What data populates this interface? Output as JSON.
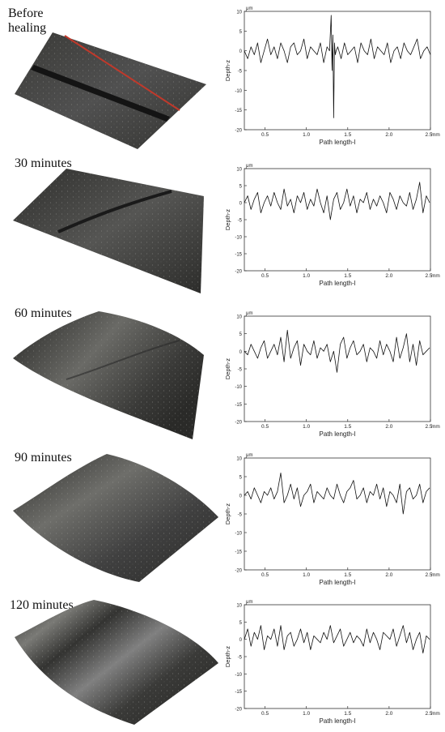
{
  "figure": {
    "panels": [
      {
        "label": "Before\nhealing",
        "surface": {
          "crack_visible": true,
          "crack_strength": "deep",
          "scan_line_marker": true,
          "scan_line_color": "#c0392b"
        },
        "tick_labels": {
          "unit_y": "μm",
          "unit_x": "mm",
          "xlabel": "Path length-l",
          "ylabel": "Depth-z"
        }
      },
      {
        "label": "30 minutes",
        "surface": {
          "crack_visible": true,
          "crack_strength": "shallow",
          "scan_line_marker": false
        },
        "tick_labels": {
          "unit_y": "μm",
          "unit_x": "mm",
          "xlabel": "Path length-l",
          "ylabel": "Depth-z"
        }
      },
      {
        "label": "60 minutes",
        "surface": {
          "crack_visible": true,
          "crack_strength": "faint",
          "scan_line_marker": false
        },
        "tick_labels": {
          "unit_y": "μm",
          "unit_x": "mm",
          "xlabel": "Path length-l",
          "ylabel": "Depth-z"
        }
      },
      {
        "label": "90 minutes",
        "surface": {
          "crack_visible": false,
          "crack_strength": "none",
          "scan_line_marker": false
        },
        "tick_labels": {
          "unit_y": "μm",
          "unit_x": "mm",
          "xlabel": "Path length-l",
          "ylabel": "Depth-z"
        }
      },
      {
        "label": "120 minutes",
        "surface": {
          "crack_visible": false,
          "crack_strength": "none",
          "scan_line_marker": false
        },
        "tick_labels": {
          "unit_y": "μm",
          "unit_x": "mm",
          "xlabel": "Path length-l",
          "ylabel": "Depth-z"
        }
      }
    ]
  },
  "chart_data": [
    {
      "type": "line",
      "title": "",
      "xlabel": "Path length-l",
      "ylabel": "Depth-z",
      "x_unit": "mm",
      "y_unit": "μm",
      "xlim": [
        0.25,
        2.5
      ],
      "ylim": [
        -20,
        10
      ],
      "xticks": [
        0.5,
        1.0,
        1.5,
        2.0,
        2.5
      ],
      "xtick_labels": [
        "0.5",
        "1.0",
        "1.5",
        "2.0",
        "2.5"
      ],
      "yticks": [
        10,
        5,
        0,
        -5,
        -10,
        -15,
        -20
      ],
      "ytick_labels": [
        "10",
        "5",
        "0",
        "-5",
        "-10",
        "-15",
        "-20"
      ],
      "grid": false,
      "series": [
        {
          "x": [
            0.25,
            0.29,
            0.33,
            0.37,
            0.41,
            0.45,
            0.49,
            0.53,
            0.57,
            0.61,
            0.65,
            0.69,
            0.73,
            0.77,
            0.81,
            0.85,
            0.89,
            0.93,
            0.97,
            1.01,
            1.05,
            1.09,
            1.13,
            1.17,
            1.21,
            1.25,
            1.28,
            1.3,
            1.31,
            1.32,
            1.33,
            1.34,
            1.35,
            1.36,
            1.38,
            1.42,
            1.46,
            1.5,
            1.54,
            1.58,
            1.62,
            1.66,
            1.7,
            1.74,
            1.78,
            1.82,
            1.86,
            1.9,
            1.94,
            1.98,
            2.02,
            2.06,
            2.1,
            2.14,
            2.18,
            2.22,
            2.26,
            2.3,
            2.34,
            2.38,
            2.42,
            2.46,
            2.5
          ],
          "y": [
            0,
            -2,
            1,
            -1,
            2,
            -3,
            0,
            3,
            -1,
            1,
            -2,
            2,
            0,
            -3,
            1,
            2,
            -1,
            0,
            3,
            -2,
            1,
            0,
            -1,
            2,
            -3,
            1,
            0,
            9,
            -5,
            4,
            -17,
            2,
            -1,
            0,
            1,
            -2,
            2,
            -1,
            0,
            1,
            -3,
            2,
            0,
            -1,
            3,
            -2,
            1,
            0,
            -1,
            2,
            -3,
            0,
            1,
            -2,
            2,
            0,
            -1,
            1,
            3,
            -2,
            0,
            1,
            -1
          ]
        }
      ]
    },
    {
      "type": "line",
      "title": "",
      "xlabel": "Path length-l",
      "ylabel": "Depth-z",
      "x_unit": "mm",
      "y_unit": "μm",
      "xlim": [
        0.25,
        2.5
      ],
      "ylim": [
        -20,
        10
      ],
      "xticks": [
        0.5,
        1.0,
        1.5,
        2.0,
        2.5
      ],
      "xtick_labels": [
        "0.5",
        "1.0",
        "1.5",
        "2.0",
        "2.5"
      ],
      "yticks": [
        10,
        5,
        0,
        -5,
        -10,
        -15,
        -20
      ],
      "ytick_labels": [
        "10",
        "5",
        "0",
        "-5",
        "-10",
        "-15",
        "-20"
      ],
      "grid": false,
      "series": [
        {
          "x": [
            0.25,
            0.29,
            0.33,
            0.37,
            0.41,
            0.45,
            0.49,
            0.53,
            0.57,
            0.61,
            0.65,
            0.69,
            0.73,
            0.77,
            0.81,
            0.85,
            0.89,
            0.93,
            0.97,
            1.01,
            1.05,
            1.09,
            1.13,
            1.17,
            1.21,
            1.25,
            1.29,
            1.33,
            1.37,
            1.41,
            1.45,
            1.49,
            1.53,
            1.57,
            1.61,
            1.65,
            1.69,
            1.73,
            1.77,
            1.81,
            1.85,
            1.89,
            1.93,
            1.97,
            2.01,
            2.05,
            2.09,
            2.13,
            2.17,
            2.21,
            2.25,
            2.29,
            2.33,
            2.37,
            2.41,
            2.45,
            2.49
          ],
          "y": [
            0,
            2,
            -2,
            1,
            3,
            -3,
            0,
            2,
            -1,
            3,
            0,
            -2,
            4,
            -1,
            1,
            -3,
            2,
            0,
            3,
            -2,
            1,
            -1,
            4,
            0,
            -3,
            2,
            -5,
            1,
            3,
            -2,
            0,
            4,
            -1,
            2,
            -3,
            1,
            0,
            3,
            -2,
            1,
            -1,
            2,
            0,
            -3,
            3,
            1,
            -2,
            2,
            0,
            -1,
            3,
            -2,
            1,
            6,
            -3,
            2,
            0
          ]
        }
      ]
    },
    {
      "type": "line",
      "title": "",
      "xlabel": "Path length-l",
      "ylabel": "Depth-z",
      "x_unit": "mm",
      "y_unit": "μm",
      "xlim": [
        0.25,
        2.5
      ],
      "ylim": [
        -20,
        10
      ],
      "xticks": [
        0.5,
        1.0,
        1.5,
        2.0,
        2.5
      ],
      "xtick_labels": [
        "0.5",
        "1.0",
        "1.5",
        "2.0",
        "2.5"
      ],
      "yticks": [
        10,
        5,
        0,
        -5,
        -10,
        -15,
        -20
      ],
      "ytick_labels": [
        "10",
        "5",
        "0",
        "-5",
        "-10",
        "-15",
        "-20"
      ],
      "grid": false,
      "series": [
        {
          "x": [
            0.25,
            0.29,
            0.33,
            0.37,
            0.41,
            0.45,
            0.49,
            0.53,
            0.57,
            0.61,
            0.65,
            0.69,
            0.73,
            0.77,
            0.81,
            0.85,
            0.89,
            0.93,
            0.97,
            1.01,
            1.05,
            1.09,
            1.13,
            1.17,
            1.21,
            1.25,
            1.29,
            1.33,
            1.37,
            1.41,
            1.45,
            1.49,
            1.53,
            1.57,
            1.61,
            1.65,
            1.69,
            1.73,
            1.77,
            1.81,
            1.85,
            1.89,
            1.93,
            1.97,
            2.01,
            2.05,
            2.09,
            2.13,
            2.17,
            2.21,
            2.25,
            2.29,
            2.33,
            2.37,
            2.41,
            2.45,
            2.49
          ],
          "y": [
            0,
            -1,
            2,
            0,
            -2,
            1,
            3,
            -2,
            0,
            2,
            -1,
            4,
            -3,
            6,
            -2,
            1,
            3,
            -4,
            2,
            0,
            -1,
            3,
            -2,
            1,
            0,
            2,
            -3,
            0,
            -6,
            2,
            4,
            -2,
            1,
            3,
            -1,
            0,
            2,
            -3,
            1,
            0,
            -2,
            3,
            -1,
            2,
            0,
            -3,
            4,
            -2,
            1,
            5,
            -3,
            2,
            -4,
            3,
            -1,
            0,
            1
          ]
        }
      ]
    },
    {
      "type": "line",
      "title": "",
      "xlabel": "Path length-l",
      "ylabel": "Depth-z",
      "x_unit": "mm",
      "y_unit": "μm",
      "xlim": [
        0.25,
        2.5
      ],
      "ylim": [
        -20,
        10
      ],
      "xticks": [
        0.5,
        1.0,
        1.5,
        2.0,
        2.5
      ],
      "xtick_labels": [
        "0.5",
        "1.0",
        "1.5",
        "2.0",
        "2.5"
      ],
      "yticks": [
        10,
        5,
        0,
        -5,
        -10,
        -15,
        -20
      ],
      "ytick_labels": [
        "10",
        "5",
        "0",
        "-5",
        "-10",
        "-15",
        "-20"
      ],
      "grid": false,
      "series": [
        {
          "x": [
            0.25,
            0.29,
            0.33,
            0.37,
            0.41,
            0.45,
            0.49,
            0.53,
            0.57,
            0.61,
            0.65,
            0.69,
            0.73,
            0.77,
            0.81,
            0.85,
            0.89,
            0.93,
            0.97,
            1.01,
            1.05,
            1.09,
            1.13,
            1.17,
            1.21,
            1.25,
            1.29,
            1.33,
            1.37,
            1.41,
            1.45,
            1.49,
            1.53,
            1.57,
            1.61,
            1.65,
            1.69,
            1.73,
            1.77,
            1.81,
            1.85,
            1.89,
            1.93,
            1.97,
            2.01,
            2.05,
            2.09,
            2.13,
            2.17,
            2.21,
            2.25,
            2.29,
            2.33,
            2.37,
            2.41,
            2.45,
            2.49
          ],
          "y": [
            0,
            1,
            -1,
            2,
            0,
            -2,
            1,
            0,
            2,
            -1,
            1,
            6,
            -2,
            0,
            3,
            -1,
            2,
            -3,
            0,
            1,
            3,
            -2,
            1,
            0,
            -1,
            2,
            0,
            -1,
            3,
            0,
            -2,
            1,
            2,
            4,
            -1,
            0,
            2,
            -2,
            1,
            0,
            3,
            -1,
            2,
            -3,
            1,
            0,
            -2,
            3,
            -5,
            1,
            2,
            -1,
            0,
            3,
            -2,
            1,
            2
          ]
        }
      ]
    },
    {
      "type": "line",
      "title": "",
      "xlabel": "Path length-l",
      "ylabel": "Depth-z",
      "x_unit": "mm",
      "y_unit": "μm",
      "xlim": [
        0.25,
        2.5
      ],
      "ylim": [
        -20,
        10
      ],
      "xticks": [
        0.5,
        1.0,
        1.5,
        2.0,
        2.5
      ],
      "xtick_labels": [
        "0.5",
        "1.0",
        "1.5",
        "2.0",
        "2.5"
      ],
      "yticks": [
        10,
        5,
        0,
        -5,
        -10,
        -15,
        -20
      ],
      "ytick_labels": [
        "10",
        "5",
        "0",
        "-5",
        "-10",
        "-15",
        "-20"
      ],
      "grid": false,
      "series": [
        {
          "x": [
            0.25,
            0.29,
            0.33,
            0.37,
            0.41,
            0.45,
            0.49,
            0.53,
            0.57,
            0.61,
            0.65,
            0.69,
            0.73,
            0.77,
            0.81,
            0.85,
            0.89,
            0.93,
            0.97,
            1.01,
            1.05,
            1.09,
            1.13,
            1.17,
            1.21,
            1.25,
            1.29,
            1.33,
            1.37,
            1.41,
            1.45,
            1.49,
            1.53,
            1.57,
            1.61,
            1.65,
            1.69,
            1.73,
            1.77,
            1.81,
            1.85,
            1.89,
            1.93,
            1.97,
            2.01,
            2.05,
            2.09,
            2.13,
            2.17,
            2.21,
            2.25,
            2.29,
            2.33,
            2.37,
            2.41,
            2.45,
            2.49
          ],
          "y": [
            0,
            3,
            -2,
            2,
            0,
            4,
            -3,
            1,
            0,
            3,
            -2,
            4,
            -3,
            1,
            2,
            -2,
            0,
            3,
            -1,
            2,
            -3,
            1,
            0,
            -1,
            2,
            0,
            4,
            -1,
            1,
            3,
            -2,
            0,
            2,
            -1,
            1,
            0,
            -2,
            3,
            -1,
            2,
            0,
            -3,
            2,
            1,
            0,
            3,
            -2,
            1,
            4,
            -1,
            2,
            -3,
            0,
            2,
            -4,
            1,
            0
          ]
        }
      ]
    }
  ]
}
